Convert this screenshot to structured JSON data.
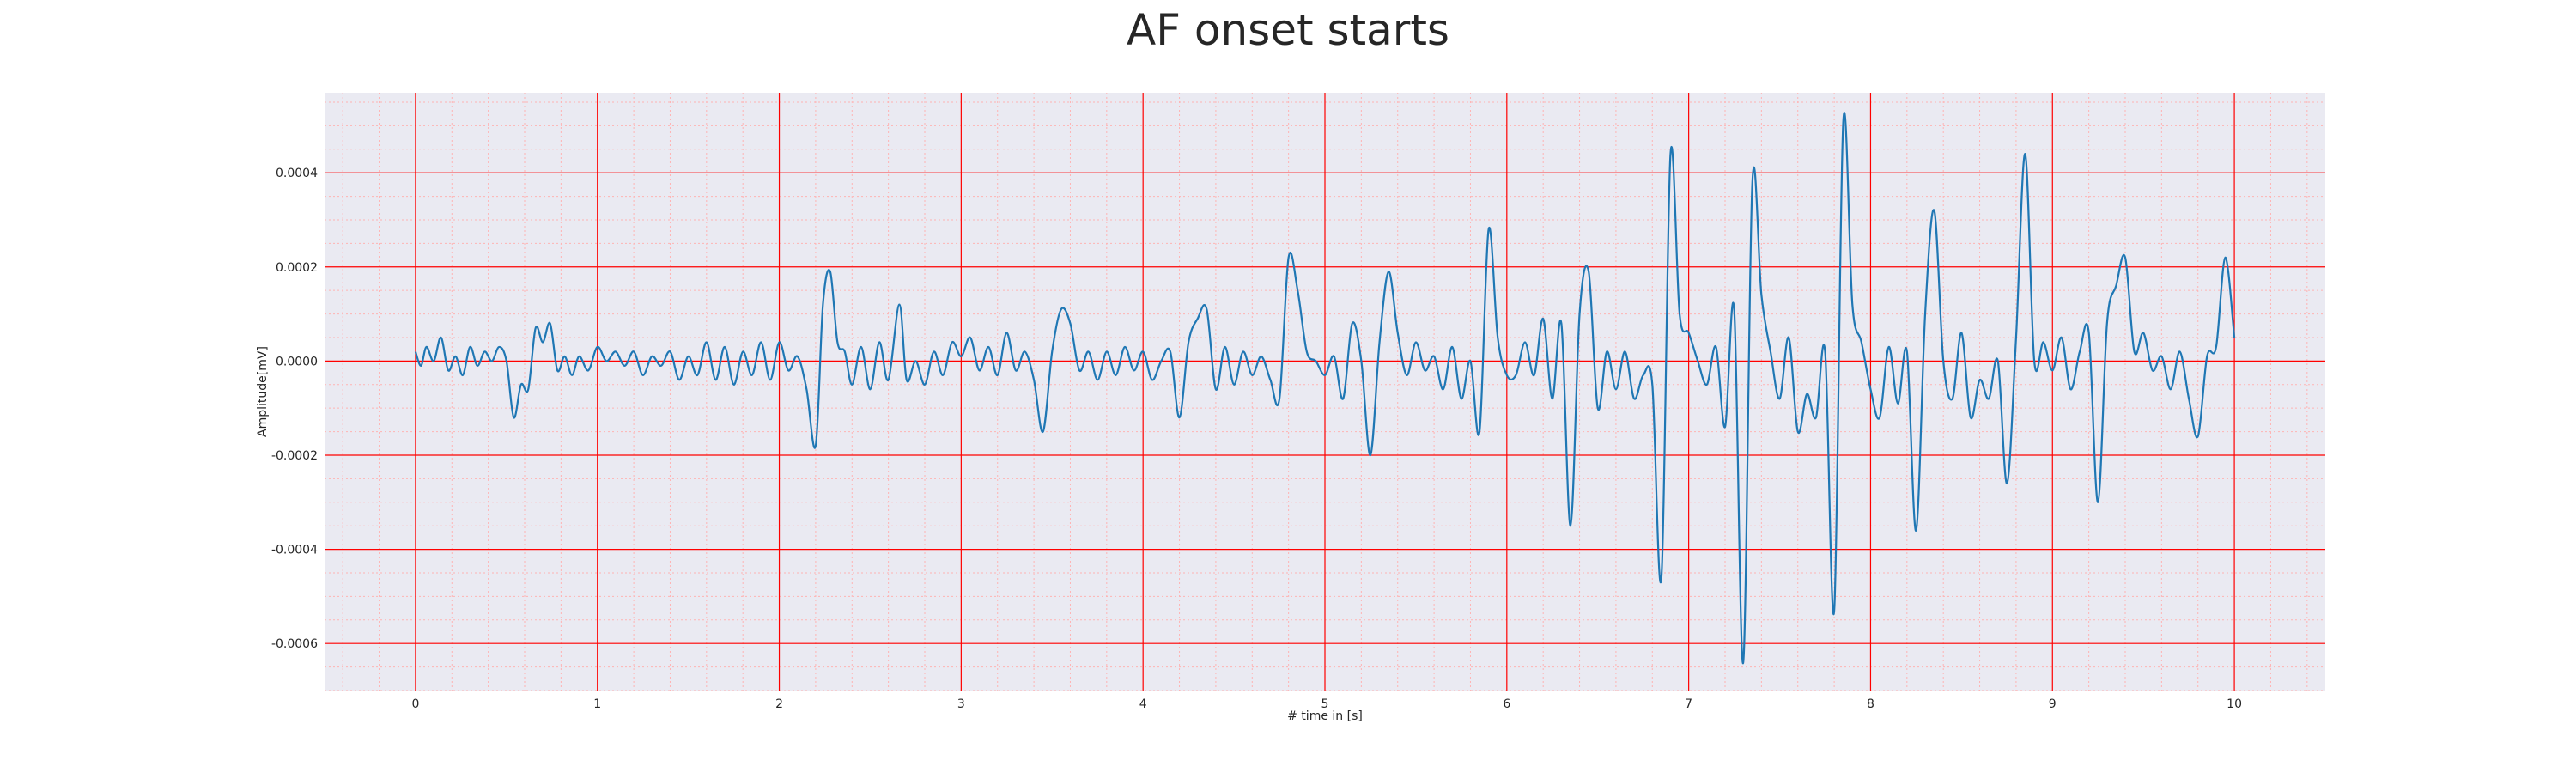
{
  "chart_data": {
    "type": "line",
    "title": "AF onset starts",
    "xlabel": "# time in [s]",
    "ylabel": "Amplitude[mV]",
    "xlim": [
      -0.5,
      10.5
    ],
    "ylim": [
      -0.0007,
      0.00057
    ],
    "x_ticks": [
      0,
      1,
      2,
      3,
      4,
      5,
      6,
      7,
      8,
      9,
      10
    ],
    "x_tick_labels": [
      "0",
      "1",
      "2",
      "3",
      "4",
      "5",
      "6",
      "7",
      "8",
      "9",
      "10"
    ],
    "y_ticks": [
      -0.0006,
      -0.0004,
      -0.0002,
      0.0,
      0.0002,
      0.0004
    ],
    "y_tick_labels": [
      "-0.0006",
      "-0.0004",
      "-0.0002",
      "0.0000",
      "0.0002",
      "0.0004"
    ],
    "grid": true,
    "minor_grid": true,
    "colors": {
      "background": "#eaeaf2",
      "major_grid": "#ff0000",
      "minor_grid": "#ffb3b3",
      "line": "#1f77b4"
    },
    "series": [
      {
        "points": [
          [
            0.0,
            2e-05
          ],
          [
            0.03,
            -1e-05
          ],
          [
            0.06,
            3e-05
          ],
          [
            0.1,
            0.0
          ],
          [
            0.14,
            5e-05
          ],
          [
            0.18,
            -2e-05
          ],
          [
            0.22,
            1e-05
          ],
          [
            0.26,
            -3e-05
          ],
          [
            0.3,
            3e-05
          ],
          [
            0.34,
            -1e-05
          ],
          [
            0.38,
            2e-05
          ],
          [
            0.42,
            0.0
          ],
          [
            0.46,
            3e-05
          ],
          [
            0.5,
            0.0
          ],
          [
            0.54,
            -0.00012
          ],
          [
            0.58,
            -5e-05
          ],
          [
            0.62,
            -6e-05
          ],
          [
            0.66,
            7e-05
          ],
          [
            0.7,
            4e-05
          ],
          [
            0.74,
            8e-05
          ],
          [
            0.78,
            -2e-05
          ],
          [
            0.82,
            1e-05
          ],
          [
            0.86,
            -3e-05
          ],
          [
            0.9,
            1e-05
          ],
          [
            0.95,
            -2e-05
          ],
          [
            1.0,
            3e-05
          ],
          [
            1.05,
            0.0
          ],
          [
            1.1,
            2e-05
          ],
          [
            1.15,
            -1e-05
          ],
          [
            1.2,
            2e-05
          ],
          [
            1.25,
            -3e-05
          ],
          [
            1.3,
            1e-05
          ],
          [
            1.35,
            -1e-05
          ],
          [
            1.4,
            2e-05
          ],
          [
            1.45,
            -4e-05
          ],
          [
            1.5,
            1e-05
          ],
          [
            1.55,
            -3e-05
          ],
          [
            1.6,
            4e-05
          ],
          [
            1.65,
            -4e-05
          ],
          [
            1.7,
            3e-05
          ],
          [
            1.75,
            -5e-05
          ],
          [
            1.8,
            2e-05
          ],
          [
            1.85,
            -3e-05
          ],
          [
            1.9,
            4e-05
          ],
          [
            1.95,
            -4e-05
          ],
          [
            2.0,
            4e-05
          ],
          [
            2.05,
            -2e-05
          ],
          [
            2.1,
            1e-05
          ],
          [
            2.15,
            -6e-05
          ],
          [
            2.2,
            -0.00018
          ],
          [
            2.24,
            0.00012
          ],
          [
            2.28,
            0.00019
          ],
          [
            2.32,
            4e-05
          ],
          [
            2.36,
            2e-05
          ],
          [
            2.4,
            -5e-05
          ],
          [
            2.45,
            3e-05
          ],
          [
            2.5,
            -6e-05
          ],
          [
            2.55,
            4e-05
          ],
          [
            2.6,
            -4e-05
          ],
          [
            2.66,
            0.00012
          ],
          [
            2.7,
            -4e-05
          ],
          [
            2.75,
            0.0
          ],
          [
            2.8,
            -5e-05
          ],
          [
            2.85,
            2e-05
          ],
          [
            2.9,
            -3e-05
          ],
          [
            2.95,
            4e-05
          ],
          [
            3.0,
            1e-05
          ],
          [
            3.05,
            5e-05
          ],
          [
            3.1,
            -2e-05
          ],
          [
            3.15,
            3e-05
          ],
          [
            3.2,
            -3e-05
          ],
          [
            3.25,
            6e-05
          ],
          [
            3.3,
            -2e-05
          ],
          [
            3.35,
            2e-05
          ],
          [
            3.4,
            -4e-05
          ],
          [
            3.45,
            -0.00015
          ],
          [
            3.5,
            2e-05
          ],
          [
            3.55,
            0.00011
          ],
          [
            3.6,
            8e-05
          ],
          [
            3.65,
            -2e-05
          ],
          [
            3.7,
            2e-05
          ],
          [
            3.75,
            -4e-05
          ],
          [
            3.8,
            2e-05
          ],
          [
            3.85,
            -3e-05
          ],
          [
            3.9,
            3e-05
          ],
          [
            3.95,
            -2e-05
          ],
          [
            4.0,
            2e-05
          ],
          [
            4.05,
            -4e-05
          ],
          [
            4.1,
            0.0
          ],
          [
            4.15,
            2e-05
          ],
          [
            4.2,
            -0.00012
          ],
          [
            4.25,
            4e-05
          ],
          [
            4.3,
            9e-05
          ],
          [
            4.35,
            0.00011
          ],
          [
            4.4,
            -6e-05
          ],
          [
            4.45,
            3e-05
          ],
          [
            4.5,
            -5e-05
          ],
          [
            4.55,
            2e-05
          ],
          [
            4.6,
            -3e-05
          ],
          [
            4.65,
            1e-05
          ],
          [
            4.7,
            -4e-05
          ],
          [
            4.75,
            -8e-05
          ],
          [
            4.8,
            0.00022
          ],
          [
            4.85,
            0.00015
          ],
          [
            4.9,
            2e-05
          ],
          [
            4.95,
            0.0
          ],
          [
            5.0,
            -3e-05
          ],
          [
            5.05,
            1e-05
          ],
          [
            5.1,
            -8e-05
          ],
          [
            5.15,
            8e-05
          ],
          [
            5.2,
            0.0
          ],
          [
            5.25,
            -0.0002
          ],
          [
            5.3,
            4e-05
          ],
          [
            5.35,
            0.00019
          ],
          [
            5.4,
            6e-05
          ],
          [
            5.45,
            -3e-05
          ],
          [
            5.5,
            4e-05
          ],
          [
            5.55,
            -2e-05
          ],
          [
            5.6,
            1e-05
          ],
          [
            5.65,
            -6e-05
          ],
          [
            5.7,
            3e-05
          ],
          [
            5.75,
            -8e-05
          ],
          [
            5.8,
            0.0
          ],
          [
            5.85,
            -0.00015
          ],
          [
            5.9,
            0.00028
          ],
          [
            5.95,
            5e-05
          ],
          [
            6.0,
            -3e-05
          ],
          [
            6.05,
            -3e-05
          ],
          [
            6.1,
            4e-05
          ],
          [
            6.15,
            -3e-05
          ],
          [
            6.2,
            9e-05
          ],
          [
            6.25,
            -8e-05
          ],
          [
            6.3,
            8e-05
          ],
          [
            6.35,
            -0.00035
          ],
          [
            6.4,
            0.0001
          ],
          [
            6.45,
            0.00019
          ],
          [
            6.5,
            -0.0001
          ],
          [
            6.55,
            2e-05
          ],
          [
            6.6,
            -6e-05
          ],
          [
            6.65,
            2e-05
          ],
          [
            6.7,
            -8e-05
          ],
          [
            6.75,
            -3e-05
          ],
          [
            6.8,
            -5e-05
          ],
          [
            6.85,
            -0.00046
          ],
          [
            6.9,
            0.00044
          ],
          [
            6.95,
            0.0001
          ],
          [
            7.0,
            6e-05
          ],
          [
            7.05,
            0.0
          ],
          [
            7.1,
            -5e-05
          ],
          [
            7.15,
            3e-05
          ],
          [
            7.2,
            -0.00014
          ],
          [
            7.25,
            0.00011
          ],
          [
            7.3,
            -0.00064
          ],
          [
            7.35,
            0.00038
          ],
          [
            7.4,
            0.00014
          ],
          [
            7.45,
            2e-05
          ],
          [
            7.5,
            -8e-05
          ],
          [
            7.55,
            5e-05
          ],
          [
            7.6,
            -0.00015
          ],
          [
            7.65,
            -7e-05
          ],
          [
            7.7,
            -0.00012
          ],
          [
            7.75,
            2e-05
          ],
          [
            7.8,
            -0.00053
          ],
          [
            7.85,
            0.00051
          ],
          [
            7.9,
            0.00012
          ],
          [
            7.95,
            4e-05
          ],
          [
            8.0,
            -6e-05
          ],
          [
            8.05,
            -0.00012
          ],
          [
            8.1,
            3e-05
          ],
          [
            8.15,
            -9e-05
          ],
          [
            8.2,
            2e-05
          ],
          [
            8.25,
            -0.00036
          ],
          [
            8.3,
            0.0001
          ],
          [
            8.35,
            0.00032
          ],
          [
            8.4,
            0.0
          ],
          [
            8.45,
            -8e-05
          ],
          [
            8.5,
            6e-05
          ],
          [
            8.55,
            -0.00012
          ],
          [
            8.6,
            -4e-05
          ],
          [
            8.65,
            -8e-05
          ],
          [
            8.7,
            0.0
          ],
          [
            8.75,
            -0.00026
          ],
          [
            8.8,
            5e-05
          ],
          [
            8.85,
            0.00044
          ],
          [
            8.9,
            0.0
          ],
          [
            8.95,
            4e-05
          ],
          [
            9.0,
            -2e-05
          ],
          [
            9.05,
            5e-05
          ],
          [
            9.1,
            -6e-05
          ],
          [
            9.15,
            2e-05
          ],
          [
            9.2,
            6e-05
          ],
          [
            9.25,
            -0.0003
          ],
          [
            9.3,
            8e-05
          ],
          [
            9.35,
            0.00016
          ],
          [
            9.4,
            0.00022
          ],
          [
            9.45,
            2e-05
          ],
          [
            9.5,
            6e-05
          ],
          [
            9.55,
            -2e-05
          ],
          [
            9.6,
            1e-05
          ],
          [
            9.65,
            -6e-05
          ],
          [
            9.7,
            2e-05
          ],
          [
            9.75,
            -8e-05
          ],
          [
            9.8,
            -0.00016
          ],
          [
            9.85,
            1e-05
          ],
          [
            9.9,
            3e-05
          ],
          [
            9.95,
            0.00022
          ],
          [
            10.0,
            5e-05
          ]
        ]
      }
    ]
  }
}
